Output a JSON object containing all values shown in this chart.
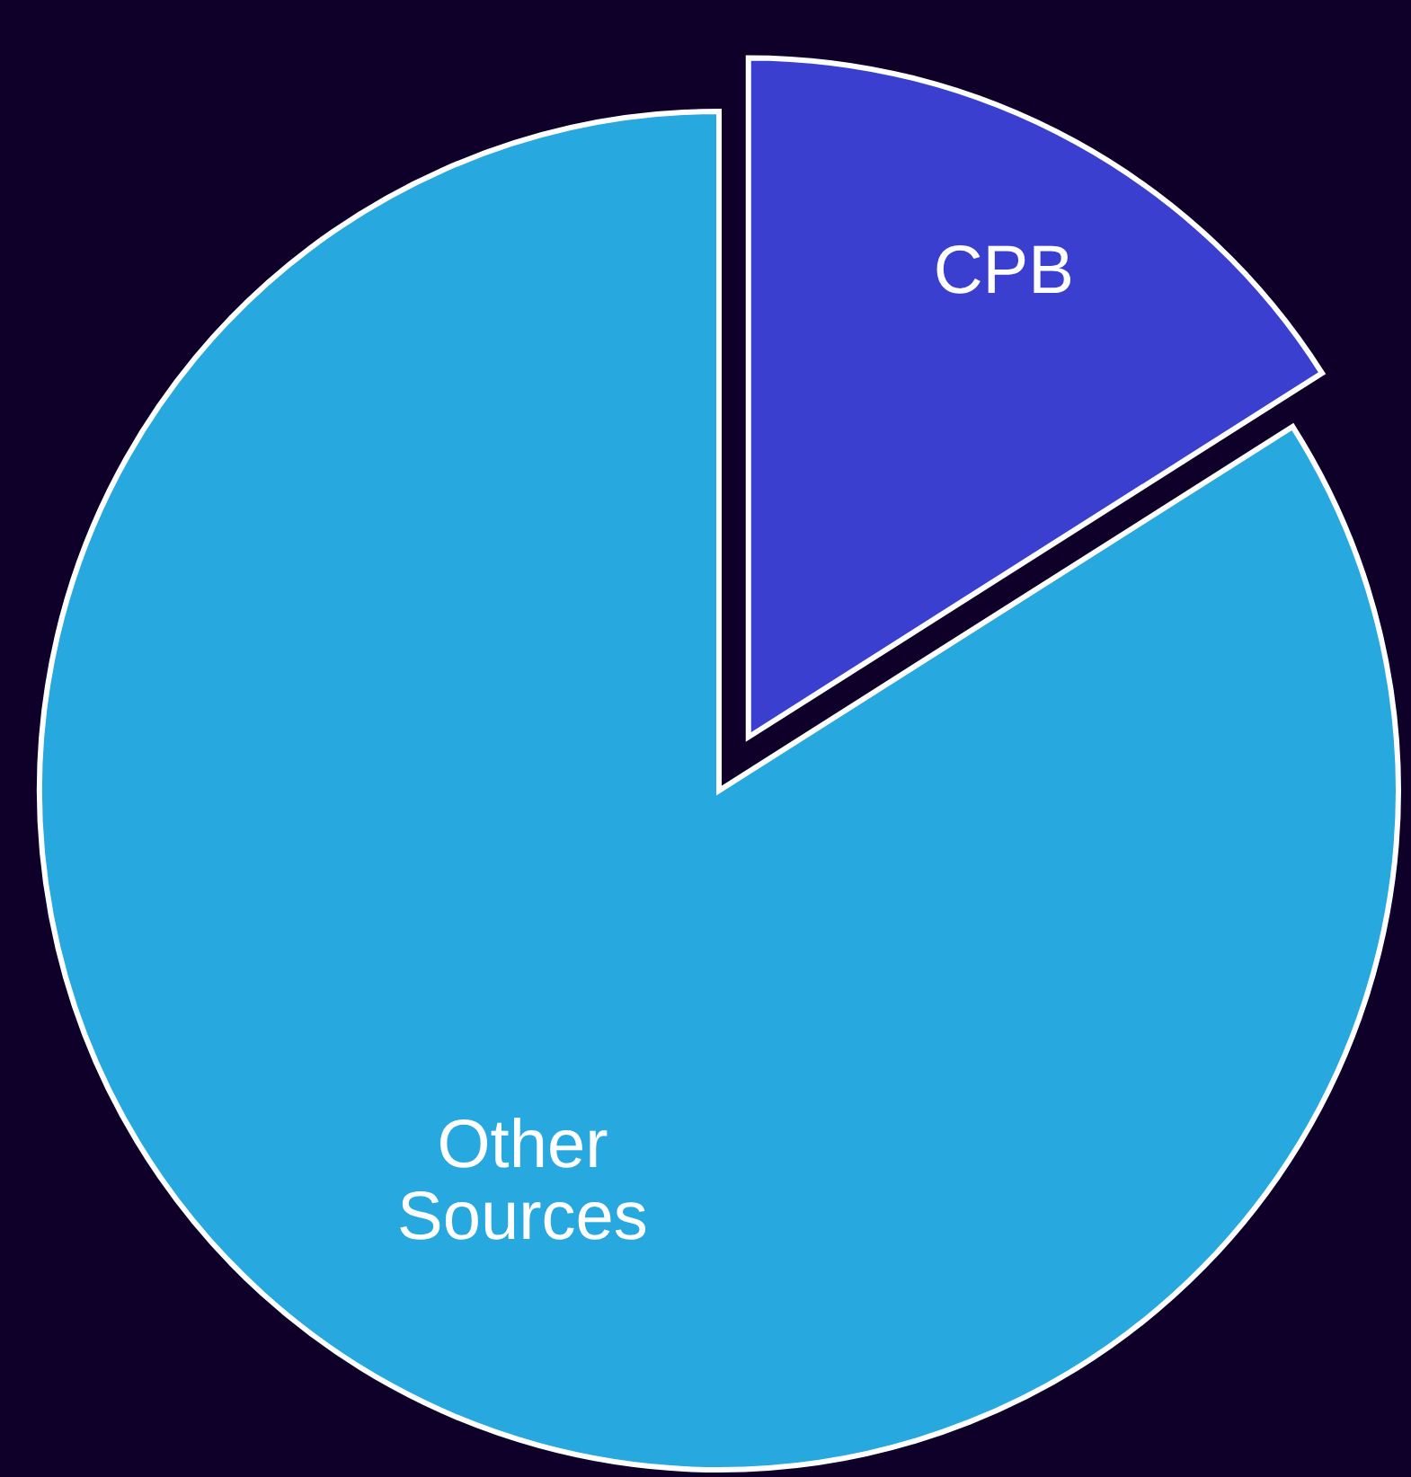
{
  "chart_data": {
    "type": "pie",
    "categories": [
      "CPB",
      "Other Sources"
    ],
    "values": [
      16,
      84
    ],
    "colors": [
      "#3a3fd0",
      "#27a8df"
    ]
  }
}
